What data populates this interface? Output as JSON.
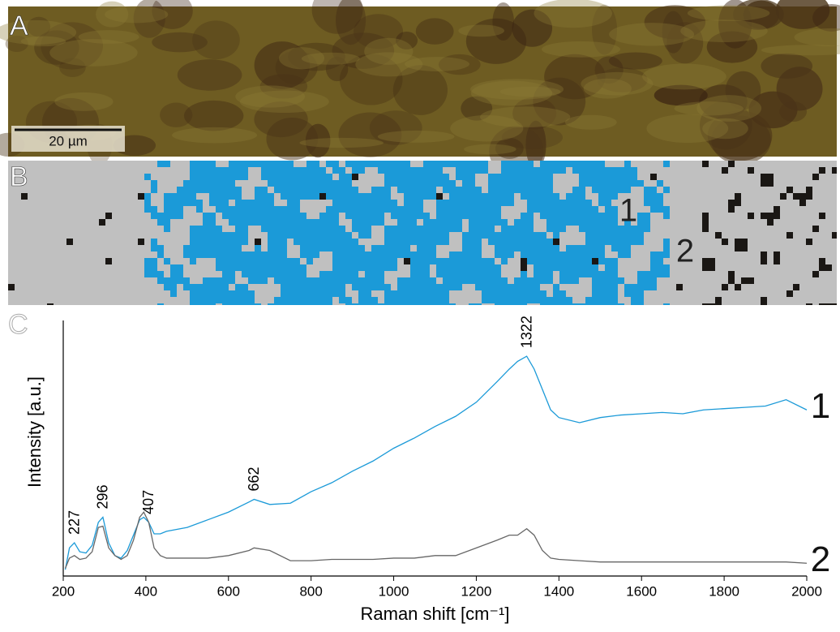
{
  "panel_labels": [
    "A",
    "B",
    "C"
  ],
  "micrograph": {
    "scale_bar": "20 µm"
  },
  "map": {
    "region_labels": [
      "1",
      "2"
    ]
  },
  "chart_data": {
    "type": "line",
    "x_label": "Raman shift [cm⁻¹]",
    "y_label": "Intensity [a.u.]",
    "x": [
      205,
      215,
      227,
      240,
      255,
      270,
      285,
      296,
      310,
      325,
      340,
      355,
      370,
      385,
      395,
      407,
      420,
      435,
      450,
      500,
      550,
      600,
      650,
      662,
      700,
      750,
      800,
      850,
      900,
      950,
      1000,
      1050,
      1100,
      1150,
      1200,
      1250,
      1280,
      1300,
      1322,
      1340,
      1360,
      1380,
      1400,
      1450,
      1500,
      1550,
      1600,
      1650,
      1700,
      1750,
      1800,
      1850,
      1900,
      1950,
      2000
    ],
    "series": [
      {
        "name": "1",
        "color": "#1b9ad8",
        "values": [
          2.5,
          11,
          13,
          9.5,
          9,
          12,
          21,
          23,
          13,
          8,
          7,
          10,
          16,
          22,
          23,
          21,
          16.5,
          16.5,
          17.5,
          19,
          22,
          25,
          29,
          30,
          28,
          28.5,
          33,
          36.5,
          41,
          45,
          50,
          54,
          58.5,
          62.5,
          68,
          76,
          81,
          84,
          86,
          81,
          73,
          65,
          62,
          60,
          62,
          63,
          63.5,
          64,
          63.5,
          65,
          65.5,
          66,
          66.5,
          69,
          65
        ]
      },
      {
        "name": "2",
        "color": "#666666",
        "values": [
          3,
          7,
          8,
          6.5,
          7,
          9.5,
          19,
          19.5,
          11,
          8,
          6.5,
          8,
          14,
          23,
          25,
          21,
          11,
          8,
          7,
          7,
          7,
          8,
          10,
          11,
          10,
          6,
          6,
          6.5,
          6.5,
          6.5,
          7,
          7,
          8,
          8,
          11,
          14,
          16,
          16,
          18.5,
          16,
          10,
          7,
          6.5,
          6,
          5.5,
          5.5,
          5.5,
          5.5,
          5.5,
          5.5,
          5.5,
          5.5,
          5.5,
          5.5,
          5
        ]
      }
    ],
    "peak_labels": [
      227,
      296,
      407,
      662,
      1322
    ],
    "xlim": [
      200,
      2000
    ],
    "xticks": [
      200,
      400,
      600,
      800,
      1000,
      1200,
      1400,
      1600,
      1800,
      2000
    ],
    "ylim": [
      0,
      100
    ]
  }
}
